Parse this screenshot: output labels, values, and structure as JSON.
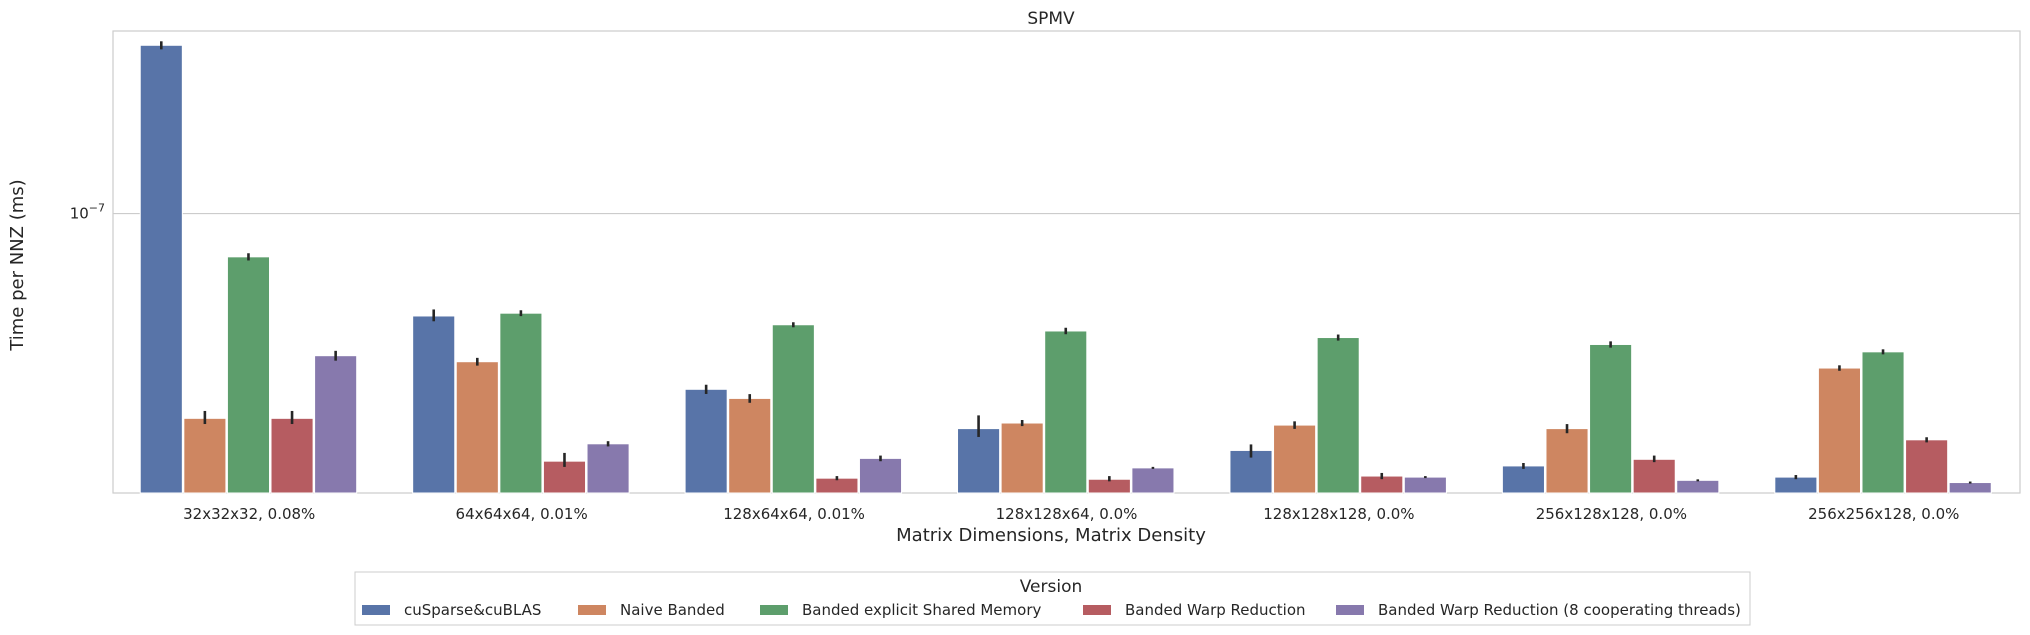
{
  "chart_data": {
    "type": "bar",
    "title": "SPMV",
    "xlabel": "Matrix Dimensions, Matrix Density",
    "ylabel": "Time per NNZ (ms)",
    "yscale": "log",
    "ylim": [
      1e-08,
      4.5e-07
    ],
    "yticks": [
      {
        "value": 1e-07,
        "base": "10",
        "exp": "−7"
      }
    ],
    "grid": true,
    "legend_position": "bottom-center",
    "legend_title": "Version",
    "categories": [
      "32x32x32, 0.08%",
      "64x64x64, 0.01%",
      "128x64x64, 0.01%",
      "128x128x64, 0.0%",
      "128x128x128, 0.0%",
      "256x128x128, 0.0%",
      "256x256x128, 0.0%"
    ],
    "series": [
      {
        "name": "cuSparse&cuBLAS",
        "color": "#5874a8",
        "values": [
          4e-07,
          4.3e-08,
          2.35e-08,
          1.7e-08,
          1.42e-08,
          1.25e-08,
          1.14e-08
        ],
        "err": [
          [
            3.9e-07,
            4.1e-07
          ],
          [
            4.15e-08,
            4.5e-08
          ],
          [
            2.28e-08,
            2.42e-08
          ],
          [
            1.6e-08,
            1.88e-08
          ],
          [
            1.35e-08,
            1.48e-08
          ],
          [
            1.23e-08,
            1.27e-08
          ],
          [
            1.13e-08,
            1.15e-08
          ]
        ]
      },
      {
        "name": "Naive Banded",
        "color": "#ce8661",
        "values": [
          1.85e-08,
          2.95e-08,
          2.18e-08,
          1.78e-08,
          1.75e-08,
          1.7e-08,
          2.8e-08
        ],
        "err": [
          [
            1.78e-08,
            1.95e-08
          ],
          [
            2.88e-08,
            3.02e-08
          ],
          [
            2.12e-08,
            2.24e-08
          ],
          [
            1.75e-08,
            1.81e-08
          ],
          [
            1.71e-08,
            1.79e-08
          ],
          [
            1.65e-08,
            1.75e-08
          ],
          [
            2.76e-08,
            2.84e-08
          ]
        ]
      },
      {
        "name": "Banded explicit Shared Memory",
        "color": "#5d9e6c",
        "values": [
          7e-08,
          4.4e-08,
          4e-08,
          3.8e-08,
          3.6e-08,
          3.4e-08,
          3.2e-08
        ],
        "err": [
          [
            6.85e-08,
            7.15e-08
          ],
          [
            4.33e-08,
            4.47e-08
          ],
          [
            3.95e-08,
            4.05e-08
          ],
          [
            3.73e-08,
            3.87e-08
          ],
          [
            3.54e-08,
            3.66e-08
          ],
          [
            3.34e-08,
            3.46e-08
          ],
          [
            3.16e-08,
            3.24e-08
          ]
        ]
      },
      {
        "name": "Banded Warp Reduction",
        "color": "#b65c61",
        "values": [
          1.85e-08,
          1.3e-08,
          1.13e-08,
          1.12e-08,
          1.15e-08,
          1.32e-08,
          1.55e-08
        ],
        "err": [
          [
            1.78e-08,
            1.95e-08
          ],
          [
            1.25e-08,
            1.38e-08
          ],
          [
            1.12e-08,
            1.14e-08
          ],
          [
            1.11e-08,
            1.14e-08
          ],
          [
            1.13e-08,
            1.17e-08
          ],
          [
            1.3e-08,
            1.35e-08
          ],
          [
            1.53e-08,
            1.57e-08
          ]
        ]
      },
      {
        "name": "Banded Warp Reduction (8 cooperating threads)",
        "color": "#8779ad",
        "values": [
          3.1e-08,
          1.5e-08,
          1.33e-08,
          1.23e-08,
          1.14e-08,
          1.11e-08,
          1.09e-08
        ],
        "err": [
          [
            3e-08,
            3.2e-08
          ],
          [
            1.48e-08,
            1.52e-08
          ],
          [
            1.31e-08,
            1.35e-08
          ],
          [
            1.23e-08,
            1.23e-08
          ],
          [
            1.14e-08,
            1.14e-08
          ],
          [
            1.11e-08,
            1.11e-08
          ],
          [
            1.09e-08,
            1.09e-08
          ]
        ]
      }
    ]
  }
}
